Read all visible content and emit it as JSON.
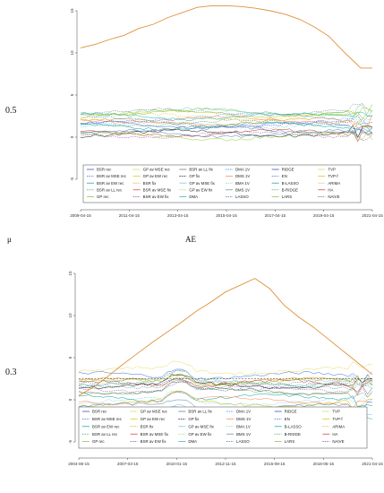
{
  "figure": {
    "mid_labels": {
      "mu": "μ",
      "ae": "AE"
    },
    "panels": [
      {
        "side_label": "0.5"
      },
      {
        "side_label": "0.3"
      }
    ]
  },
  "chart_data": [
    {
      "type": "line",
      "x_ticks": [
        "2009-04-15",
        "2011-04-15",
        "2013-04-15",
        "2015-04-15",
        "2017-04-15",
        "2019-04-15",
        "2021-04-15"
      ],
      "y_ticks": [
        -5,
        0,
        5,
        10,
        15
      ],
      "ylim": [
        -5,
        15
      ],
      "grid": false,
      "legend_placement": "bottom",
      "legend": [
        "BSR rec",
        "BSR av MSE rec",
        "BSR av EW rec",
        "BSR av LL rec",
        "GP rec",
        "GP av MSE rec",
        "GP av EW rec",
        "BSR fix",
        "BSR av MSE fix",
        "BSR av EW fix",
        "BSR av LL fix",
        "GP fix",
        "GP av MSE fix",
        "GP av EW fix",
        "DMA",
        "DMA 1V",
        "DMS 1V",
        "BMA 1V",
        "BMS 1V",
        "LASSO",
        "RIDGE",
        "EN",
        "B-LASSO",
        "B-RIDGE",
        "LARS",
        "TVP",
        "TVP-f",
        "ARIMA",
        "HA",
        "NAIVE"
      ],
      "series_highlight": {
        "name": "ARIMA",
        "x": [
          0,
          0.05,
          0.1,
          0.15,
          0.2,
          0.25,
          0.3,
          0.35,
          0.4,
          0.45,
          0.5,
          0.55,
          0.6,
          0.65,
          0.7,
          0.75,
          0.8,
          0.85,
          0.9,
          0.93,
          0.96,
          1.0
        ],
        "y": [
          10.6,
          11.0,
          11.6,
          12.1,
          12.9,
          13.4,
          14.2,
          14.8,
          15.4,
          15.6,
          15.6,
          15.5,
          15.3,
          15.0,
          14.6,
          14.0,
          13.1,
          12.0,
          10.2,
          9.2,
          8.2,
          8.2
        ]
      }
    },
    {
      "type": "line",
      "x_ticks": [
        "2004-06-15",
        "2007-03-15",
        "2010-01-15",
        "2012-11-15",
        "2015-08-15",
        "2018-05-15",
        "2021-04-15"
      ],
      "y_ticks": [
        -5,
        0,
        5,
        10,
        15
      ],
      "ylim": [
        -5,
        15
      ],
      "grid": false,
      "legend_placement": "bottom",
      "legend": [
        "BSR rec",
        "BSR av MSE rec",
        "BSR av EW rec",
        "BSR av LL rec",
        "GP rec",
        "GP av MSE rec",
        "GP av EW rec",
        "BSR fix",
        "BSR av MSE fix",
        "BSR av EW fix",
        "BSR av LL fix",
        "GP fix",
        "GP av MSE fix",
        "GP av EW fix",
        "DMA",
        "DMA 1V",
        "DMS 1V",
        "BMA 1V",
        "BMS 1V",
        "LASSO",
        "RIDGE",
        "EN",
        "B-LASSO",
        "B-RIDGE",
        "LARS",
        "TVP",
        "TVP-f",
        "ARIMA",
        "HA",
        "NAIVE"
      ],
      "series_highlight": {
        "name": "ARIMA",
        "x": [
          0,
          0.05,
          0.1,
          0.15,
          0.2,
          0.25,
          0.3,
          0.35,
          0.4,
          0.45,
          0.5,
          0.55,
          0.6,
          0.65,
          0.7,
          0.75,
          0.8,
          0.85,
          0.9,
          0.95,
          1.0
        ],
        "y": [
          0.5,
          1.5,
          2.8,
          4.2,
          5.5,
          6.8,
          8.0,
          9.2,
          10.5,
          11.6,
          12.8,
          13.6,
          14.4,
          13.2,
          11.2,
          9.8,
          8.6,
          7.2,
          5.8,
          4.4,
          3.0
        ]
      },
      "series_reference": {
        "name": "HA",
        "constant_y": 2.5
      }
    }
  ]
}
